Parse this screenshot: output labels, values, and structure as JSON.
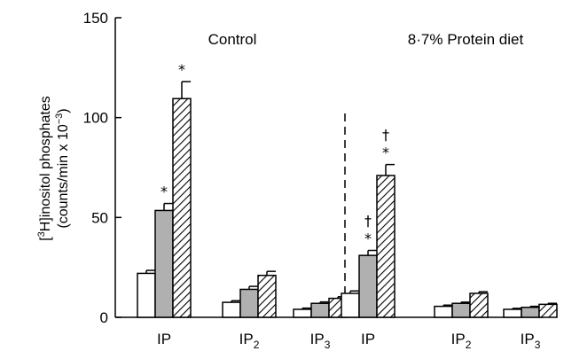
{
  "chart_data": {
    "type": "bar",
    "ylabel_line1": "[3H]inositol phosphates",
    "ylabel_parts": {
      "open": "[",
      "sup": "3",
      "rest": "H]inositol phosphates"
    },
    "ylabel_line2_parts": {
      "pre": "(counts/min x 10",
      "sup": "−3",
      "post": ")"
    },
    "ylim": [
      0,
      150
    ],
    "yticks": [
      0,
      50,
      100,
      150
    ],
    "grid": false,
    "legend": "none",
    "colors": [
      "#ffffff",
      "#b0b0b0",
      "hatched"
    ],
    "panels": [
      {
        "title": "Control",
        "groups": [
          {
            "label": "IP",
            "sub": "",
            "values": [
              22,
              53.5,
              109.5
            ],
            "errors": [
              1.5,
              3.5,
              8.5
            ],
            "markers": [
              "",
              "*",
              "*"
            ]
          },
          {
            "label": "IP",
            "sub": "2",
            "values": [
              7.5,
              14,
              21
            ],
            "errors": [
              0.8,
              1.5,
              2.0
            ],
            "markers": [
              "",
              "",
              ""
            ]
          },
          {
            "label": "IP",
            "sub": "3",
            "values": [
              4,
              7,
              9.5
            ],
            "errors": [
              0.6,
              0.7,
              0.8
            ],
            "markers": [
              "",
              "",
              ""
            ]
          }
        ]
      },
      {
        "title": "8·7% Protein diet",
        "groups": [
          {
            "label": "IP",
            "sub": "",
            "values": [
              12,
              31,
              71
            ],
            "errors": [
              1.2,
              2.5,
              5.5
            ],
            "markers": [
              "",
              "*†",
              "*†"
            ]
          },
          {
            "label": "IP",
            "sub": "2",
            "values": [
              5.5,
              7,
              12
            ],
            "errors": [
              0.6,
              0.6,
              0.8
            ],
            "markers": [
              "",
              "",
              ""
            ]
          },
          {
            "label": "IP",
            "sub": "3",
            "values": [
              4,
              5,
              6.5
            ],
            "errors": [
              0.5,
              0.5,
              0.5
            ],
            "markers": [
              "",
              "",
              ""
            ]
          }
        ]
      }
    ]
  }
}
